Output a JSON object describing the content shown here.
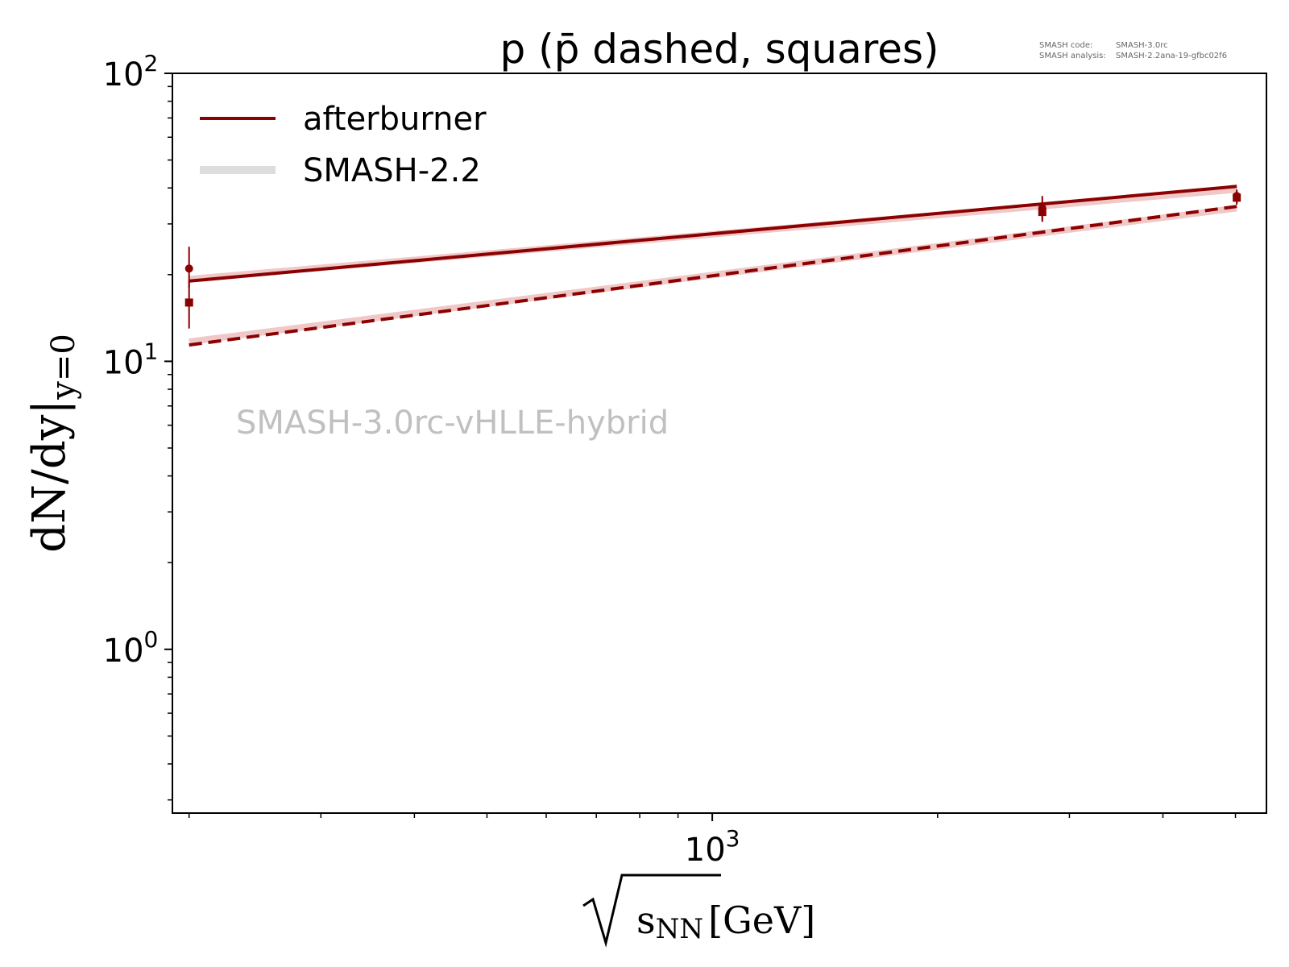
{
  "chart_data": {
    "type": "line",
    "title": "p (p̄ dashed, squares)",
    "xlabel": "√sNN [GeV]",
    "ylabel": "dN/dy|y=0",
    "xscale": "log",
    "yscale": "log",
    "xlim": [
      190,
      5500
    ],
    "ylim": [
      0.27,
      100
    ],
    "grid": false,
    "legend_position": "top-left",
    "watermark": "SMASH-3.0rc-vHLLE-hybrid",
    "version_info": {
      "code_label": "SMASH code:",
      "code_value": "SMASH-3.0rc",
      "analysis_label": "SMASH analysis:",
      "analysis_value": "SMASH-2.2ana-19-gfbc02f6"
    },
    "x_ticks": [
      {
        "value": 1000,
        "base": "10",
        "exp": "3"
      }
    ],
    "y_ticks": [
      {
        "value": 1,
        "base": "10",
        "exp": "0"
      },
      {
        "value": 10,
        "base": "10",
        "exp": "1"
      },
      {
        "value": 100,
        "base": "10",
        "exp": "2"
      }
    ],
    "legend": [
      {
        "label": "afterburner",
        "color": "#8b0000"
      },
      {
        "label": "SMASH-2.2",
        "color": "#dddddd"
      }
    ],
    "series": [
      {
        "name": "afterburner",
        "style": "solid",
        "color": "#8b0000",
        "x": [
          200,
          5020
        ],
        "y": [
          19.0,
          40.5
        ]
      },
      {
        "style": "solid",
        "color": "#f0c8c8",
        "x": [
          200,
          5020
        ],
        "y": [
          19.3,
          39.5
        ]
      },
      {
        "name": "afterburner",
        "style": "dashed",
        "color": "#8b0000",
        "x": [
          200,
          5020
        ],
        "y": [
          11.4,
          34.5
        ]
      },
      {
        "style": "solid",
        "color": "#f0c8c8",
        "x": [
          200,
          5020
        ],
        "y": [
          11.7,
          34.0
        ]
      }
    ],
    "experimental_data": [
      {
        "marker": "circle",
        "x": 200,
        "y": 21.0,
        "yerr_low": 18.0,
        "yerr_high": 25.0
      },
      {
        "marker": "square",
        "x": 200,
        "y": 16.0,
        "yerr_low": 13.0,
        "yerr_high": 19.0
      },
      {
        "marker": "circle",
        "x": 2760,
        "y": 34.0,
        "yerr_low": 31.0,
        "yerr_high": 37.5
      },
      {
        "marker": "square",
        "x": 2760,
        "y": 33.0,
        "yerr_low": 30.5,
        "yerr_high": 35.5
      },
      {
        "marker": "circle",
        "x": 5020,
        "y": 37.5,
        "yerr_low": 35.5,
        "yerr_high": 39.5
      },
      {
        "marker": "square",
        "x": 5020,
        "y": 37.0,
        "yerr_low": 35.0,
        "yerr_high": 39.0
      }
    ]
  }
}
